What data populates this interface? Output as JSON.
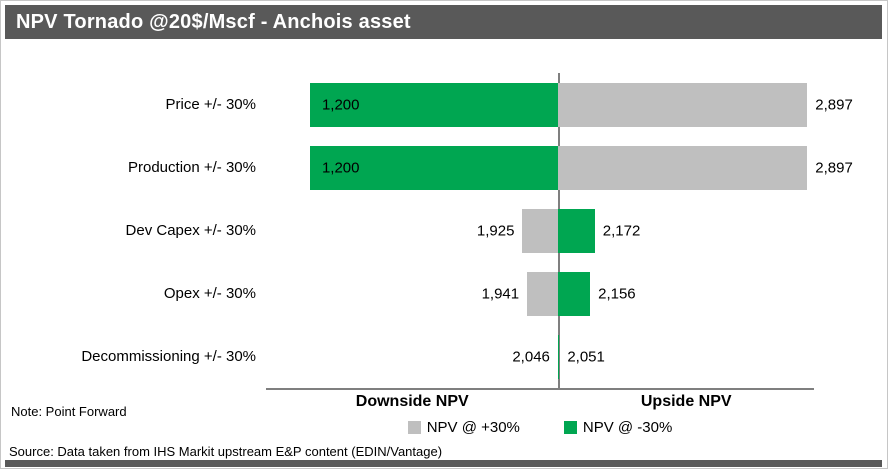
{
  "window": {
    "title": "NPV Tornado @20$/Mscf - Anchois asset"
  },
  "notes": {
    "note": "Note: Point Forward",
    "source": "Source: Data taken from IHS Markit upstream E&P content (EDIN/Vantage)"
  },
  "colors": {
    "header_bg": "#595959",
    "footer_bg": "#595959",
    "gray_bar": "#BFBFBF",
    "green_bar": "#00A651",
    "axis_line": "#7F7F7F"
  },
  "chart_data": {
    "type": "bar",
    "variant": "tornado",
    "orientation": "horizontal",
    "title": "NPV Tornado @20$/Mscf - Anchois asset",
    "axis": {
      "min": 1050,
      "max": 2920,
      "base": 2048
    },
    "axis_labels": {
      "downside": "Downside NPV",
      "upside": "Upside NPV"
    },
    "series_colors": {
      "plus30": "#BFBFBF",
      "minus30": "#00A651"
    },
    "legend": [
      {
        "key": "plus30",
        "label": "NPV @ +30%",
        "color": "#BFBFBF"
      },
      {
        "key": "minus30",
        "label": "NPV @ -30%",
        "color": "#00A651"
      }
    ],
    "rows": [
      {
        "label": "Price +/- 30%",
        "down_value": 1200,
        "down_text": "1,200",
        "down_series": "minus30",
        "down_label_inside": true,
        "up_value": 2897,
        "up_text": "2,897",
        "up_series": "plus30"
      },
      {
        "label": "Production +/- 30%",
        "down_value": 1200,
        "down_text": "1,200",
        "down_series": "minus30",
        "down_label_inside": true,
        "up_value": 2897,
        "up_text": "2,897",
        "up_series": "plus30"
      },
      {
        "label": "Dev Capex +/- 30%",
        "down_value": 1925,
        "down_text": "1,925",
        "down_series": "plus30",
        "down_label_inside": false,
        "up_value": 2172,
        "up_text": "2,172",
        "up_series": "minus30"
      },
      {
        "label": "Opex +/- 30%",
        "down_value": 1941,
        "down_text": "1,941",
        "down_series": "plus30",
        "down_label_inside": false,
        "up_value": 2156,
        "up_text": "2,156",
        "up_series": "minus30"
      },
      {
        "label": "Decommissioning +/- 30%",
        "down_value": 2046,
        "down_text": "2,046",
        "down_series": "plus30",
        "down_label_inside": false,
        "up_value": 2051,
        "up_text": "2,051",
        "up_series": "minus30"
      }
    ]
  }
}
